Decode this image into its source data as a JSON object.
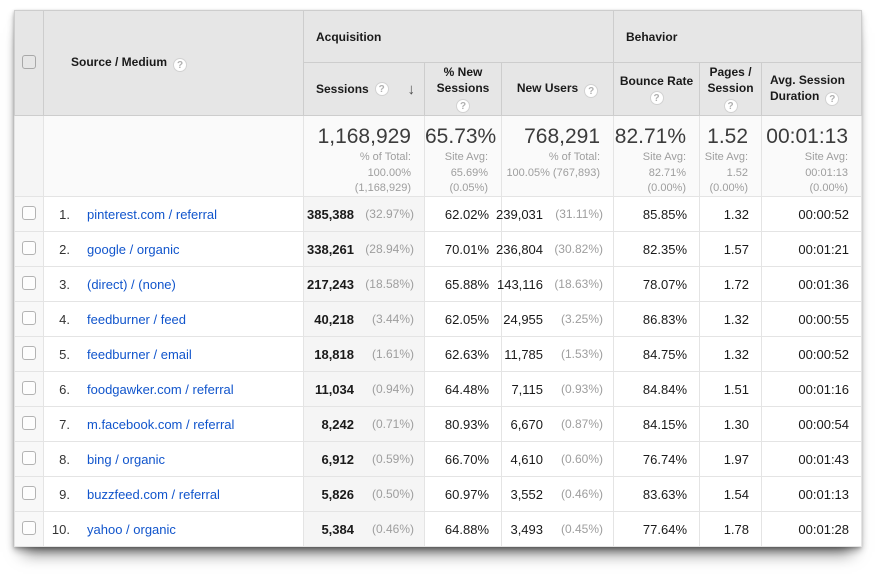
{
  "icons": {
    "help": "?",
    "sort_descending": "↓"
  },
  "table": {
    "groups": {
      "acquisition": "Acquisition",
      "behavior": "Behavior"
    },
    "columns": {
      "source_medium": "Source / Medium",
      "sessions": "Sessions",
      "pct_new_sessions": "% New Sessions",
      "new_users": "New Users",
      "bounce_rate": "Bounce Rate",
      "pages_session": "Pages / Session",
      "avg_duration": "Avg. Session Duration"
    },
    "totals": {
      "sessions": {
        "value": "1,168,929",
        "sub": "% of Total:\n100.00%\n(1,168,929)"
      },
      "pct_new_sessions": {
        "value": "65.73%",
        "sub": "Site Avg:\n65.69%\n(0.05%)"
      },
      "new_users": {
        "value": "768,291",
        "sub": "% of Total:\n100.05% (767,893)"
      },
      "bounce_rate": {
        "value": "82.71%",
        "sub": "Site Avg:\n82.71%\n(0.00%)"
      },
      "pages_session": {
        "value": "1.52",
        "sub": "Site Avg:\n1.52\n(0.00%)"
      },
      "avg_duration": {
        "value": "00:01:13",
        "sub": "Site Avg:\n00:01:13\n(0.00%)"
      }
    },
    "rows": [
      {
        "rank": "1.",
        "source": "pinterest.com / referral",
        "sessions": "385,388",
        "sessions_pct": "(32.97%)",
        "pct_new_sessions": "62.02%",
        "new_users": "239,031",
        "new_users_pct": "(31.11%)",
        "bounce_rate": "85.85%",
        "pages_session": "1.32",
        "avg_duration": "00:00:52"
      },
      {
        "rank": "2.",
        "source": "google / organic",
        "sessions": "338,261",
        "sessions_pct": "(28.94%)",
        "pct_new_sessions": "70.01%",
        "new_users": "236,804",
        "new_users_pct": "(30.82%)",
        "bounce_rate": "82.35%",
        "pages_session": "1.57",
        "avg_duration": "00:01:21"
      },
      {
        "rank": "3.",
        "source": "(direct) / (none)",
        "sessions": "217,243",
        "sessions_pct": "(18.58%)",
        "pct_new_sessions": "65.88%",
        "new_users": "143,116",
        "new_users_pct": "(18.63%)",
        "bounce_rate": "78.07%",
        "pages_session": "1.72",
        "avg_duration": "00:01:36"
      },
      {
        "rank": "4.",
        "source": "feedburner / feed",
        "sessions": "40,218",
        "sessions_pct": "(3.44%)",
        "pct_new_sessions": "62.05%",
        "new_users": "24,955",
        "new_users_pct": "(3.25%)",
        "bounce_rate": "86.83%",
        "pages_session": "1.32",
        "avg_duration": "00:00:55"
      },
      {
        "rank": "5.",
        "source": "feedburner / email",
        "sessions": "18,818",
        "sessions_pct": "(1.61%)",
        "pct_new_sessions": "62.63%",
        "new_users": "11,785",
        "new_users_pct": "(1.53%)",
        "bounce_rate": "84.75%",
        "pages_session": "1.32",
        "avg_duration": "00:00:52"
      },
      {
        "rank": "6.",
        "source": "foodgawker.com / referral",
        "sessions": "11,034",
        "sessions_pct": "(0.94%)",
        "pct_new_sessions": "64.48%",
        "new_users": "7,115",
        "new_users_pct": "(0.93%)",
        "bounce_rate": "84.84%",
        "pages_session": "1.51",
        "avg_duration": "00:01:16"
      },
      {
        "rank": "7.",
        "source": "m.facebook.com / referral",
        "sessions": "8,242",
        "sessions_pct": "(0.71%)",
        "pct_new_sessions": "80.93%",
        "new_users": "6,670",
        "new_users_pct": "(0.87%)",
        "bounce_rate": "84.15%",
        "pages_session": "1.30",
        "avg_duration": "00:00:54"
      },
      {
        "rank": "8.",
        "source": "bing / organic",
        "sessions": "6,912",
        "sessions_pct": "(0.59%)",
        "pct_new_sessions": "66.70%",
        "new_users": "4,610",
        "new_users_pct": "(0.60%)",
        "bounce_rate": "76.74%",
        "pages_session": "1.97",
        "avg_duration": "00:01:43"
      },
      {
        "rank": "9.",
        "source": "buzzfeed.com / referral",
        "sessions": "5,826",
        "sessions_pct": "(0.50%)",
        "pct_new_sessions": "60.97%",
        "new_users": "3,552",
        "new_users_pct": "(0.46%)",
        "bounce_rate": "83.63%",
        "pages_session": "1.54",
        "avg_duration": "00:01:13"
      },
      {
        "rank": "10.",
        "source": "yahoo / organic",
        "sessions": "5,384",
        "sessions_pct": "(0.46%)",
        "pct_new_sessions": "64.88%",
        "new_users": "3,493",
        "new_users_pct": "(0.45%)",
        "bounce_rate": "77.64%",
        "pages_session": "1.78",
        "avg_duration": "00:01:28"
      }
    ]
  }
}
